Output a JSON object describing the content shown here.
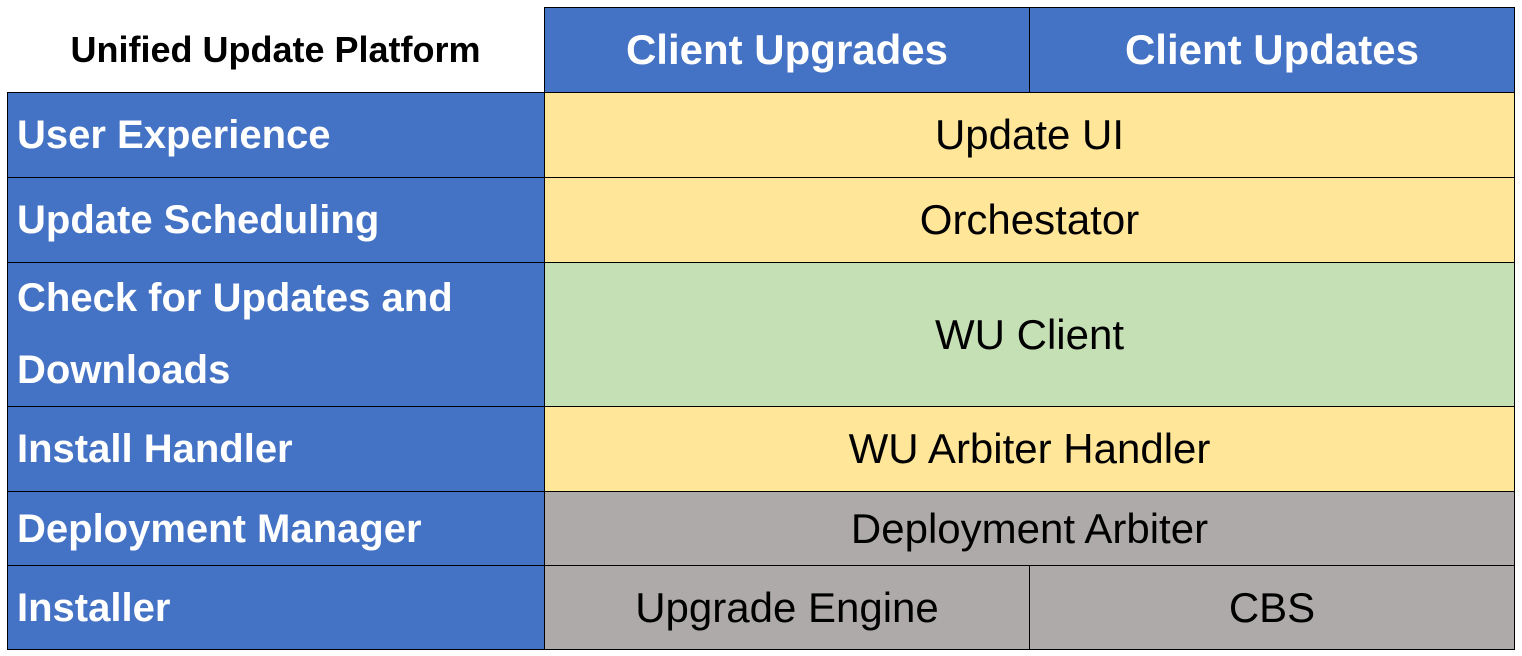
{
  "title": "Unified Update Platform",
  "columns": [
    "Client Upgrades",
    "Client Updates"
  ],
  "rows": [
    {
      "label": "User Experience",
      "cells": [
        "Update UI"
      ]
    },
    {
      "label": "Update Scheduling",
      "cells": [
        "Orchestator"
      ]
    },
    {
      "label": "Check for Updates and Downloads",
      "cells": [
        "WU Client"
      ]
    },
    {
      "label": "Install Handler",
      "cells": [
        "WU Arbiter Handler"
      ]
    },
    {
      "label": "Deployment Manager",
      "cells": [
        "Deployment Arbiter"
      ]
    },
    {
      "label": "Installer",
      "cells": [
        "Upgrade Engine",
        "CBS"
      ]
    }
  ],
  "colors": {
    "header": "#4472C4",
    "yellow": "#FFE699",
    "green": "#C5E0B4",
    "gray": "#AEAAAA"
  }
}
